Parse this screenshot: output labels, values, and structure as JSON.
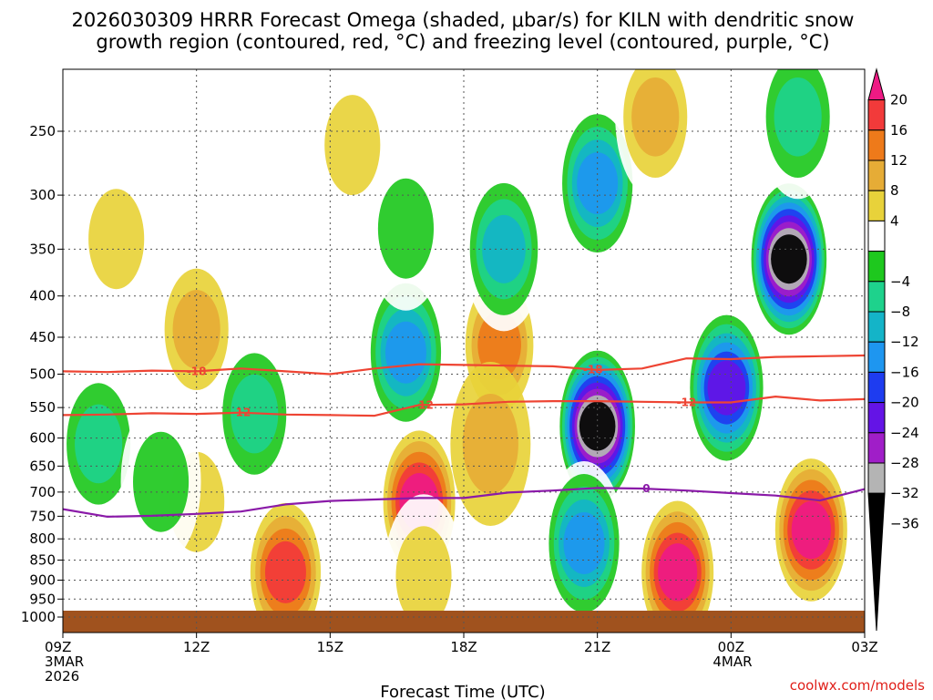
{
  "title": {
    "line1": "2026030309 HRRR Forecast Omega (shaded, μbar/s) for KILN with dendritic snow",
    "line2": "growth region (contoured, red, °C) and freezing level (contoured, purple, °C)"
  },
  "credit": "coolwx.com/models",
  "colors": {
    "ground": "#a0521e",
    "dgz_line": "#ee4433",
    "freezing_line": "#8a1aa8"
  },
  "chart_data": {
    "type": "heatmap",
    "title": "2026030309 HRRR Forecast Omega (shaded, μbar/s) for KILN with dendritic snow growth region (contoured, red, °C) and freezing level (contoured, purple, °C)",
    "xlabel": "Forecast Time (UTC)",
    "ylabel": "Pressure (hPa)",
    "x_hours_range": [
      0,
      18
    ],
    "y_pressure_range": [
      200,
      1000
    ],
    "y_ticks": [
      250,
      300,
      350,
      400,
      450,
      500,
      550,
      600,
      650,
      700,
      750,
      800,
      850,
      900,
      950,
      1000
    ],
    "x_ticks": [
      {
        "hour": 0,
        "label": "09Z",
        "sub1": "3MAR",
        "sub2": "2026"
      },
      {
        "hour": 3,
        "label": "12Z",
        "sub1": "",
        "sub2": ""
      },
      {
        "hour": 6,
        "label": "15Z",
        "sub1": "",
        "sub2": ""
      },
      {
        "hour": 9,
        "label": "18Z",
        "sub1": "",
        "sub2": ""
      },
      {
        "hour": 12,
        "label": "21Z",
        "sub1": "",
        "sub2": ""
      },
      {
        "hour": 15,
        "label": "00Z",
        "sub1": "4MAR",
        "sub2": ""
      },
      {
        "hour": 18,
        "label": "03Z",
        "sub1": "",
        "sub2": ""
      }
    ],
    "colorbar": {
      "labels": [
        "20",
        "16",
        "12",
        "8",
        "4",
        "−4",
        "−8",
        "−12",
        "−16",
        "−20",
        "−24",
        "−28",
        "−32",
        "−36"
      ],
      "bins": [
        {
          "lo": 20,
          "hi": 24,
          "color": "#ee1a84"
        },
        {
          "lo": 16,
          "hi": 20,
          "color": "#f23a3a"
        },
        {
          "lo": 12,
          "hi": 16,
          "color": "#ee7a1a"
        },
        {
          "lo": 8,
          "hi": 12,
          "color": "#e6ac36"
        },
        {
          "lo": 4,
          "hi": 8,
          "color": "#e8d23a"
        },
        {
          "lo": -4,
          "hi": 4,
          "color": "#ffffff"
        },
        {
          "lo": -8,
          "hi": -4,
          "color": "#1ec81e"
        },
        {
          "lo": -12,
          "hi": -8,
          "color": "#1ed28c"
        },
        {
          "lo": -16,
          "hi": -12,
          "color": "#14b4c8"
        },
        {
          "lo": -20,
          "hi": -16,
          "color": "#1e96f0"
        },
        {
          "lo": -24,
          "hi": -20,
          "color": "#1e3cf0"
        },
        {
          "lo": -28,
          "hi": -24,
          "color": "#6414e6"
        },
        {
          "lo": -32,
          "hi": -28,
          "color": "#a01ec8"
        },
        {
          "lo": -36,
          "hi": -32,
          "color": "#b4b4b4"
        },
        {
          "lo": -40,
          "hi": -36,
          "color": "#000000"
        }
      ]
    },
    "omega_cells": [
      {
        "hour": 1.2,
        "pressure": 340,
        "value": 5
      },
      {
        "hour": 3.0,
        "pressure": 440,
        "value": 10
      },
      {
        "hour": 3.0,
        "pressure": 720,
        "value": 5
      },
      {
        "hour": 0.8,
        "pressure": 610,
        "value": -10
      },
      {
        "hour": 2.2,
        "pressure": 680,
        "value": -6
      },
      {
        "hour": 4.3,
        "pressure": 560,
        "value": -9
      },
      {
        "hour": 5.0,
        "pressure": 880,
        "value": 18
      },
      {
        "hour": 6.5,
        "pressure": 260,
        "value": 5
      },
      {
        "hour": 7.7,
        "pressure": 470,
        "value": -18
      },
      {
        "hour": 7.7,
        "pressure": 330,
        "value": -7
      },
      {
        "hour": 8.0,
        "pressure": 720,
        "value": 21
      },
      {
        "hour": 8.1,
        "pressure": 890,
        "value": 6
      },
      {
        "hour": 9.8,
        "pressure": 460,
        "value": 13
      },
      {
        "hour": 9.6,
        "pressure": 610,
        "value": 8
      },
      {
        "hour": 9.9,
        "pressure": 350,
        "value": -13
      },
      {
        "hour": 12.0,
        "pressure": 290,
        "value": -17
      },
      {
        "hour": 12.0,
        "pressure": 580,
        "value": -38
      },
      {
        "hour": 11.7,
        "pressure": 810,
        "value": -17
      },
      {
        "hour": 13.3,
        "pressure": 240,
        "value": 9
      },
      {
        "hour": 13.8,
        "pressure": 880,
        "value": 22
      },
      {
        "hour": 14.9,
        "pressure": 520,
        "value": -26
      },
      {
        "hour": 16.3,
        "pressure": 360,
        "value": -38
      },
      {
        "hour": 16.8,
        "pressure": 780,
        "value": 22
      },
      {
        "hour": 16.5,
        "pressure": 240,
        "value": -10
      }
    ],
    "contours": [
      {
        "name": "-18",
        "kind": "dgz",
        "x": [
          0,
          1,
          2,
          3,
          4,
          5,
          6,
          7,
          8,
          9,
          10,
          11,
          12,
          13,
          14,
          15,
          16,
          17,
          18
        ],
        "y": [
          496,
          497,
          495,
          496,
          492,
          496,
          500,
          492,
          486,
          487,
          488,
          489,
          494,
          492,
          478,
          479,
          476,
          475,
          474
        ],
        "label_hours": [
          3.0,
          11.9
        ]
      },
      {
        "name": "-12",
        "kind": "dgz",
        "x": [
          0,
          1,
          2,
          3,
          4,
          5,
          6,
          7,
          8,
          9,
          10,
          11,
          12,
          13,
          14,
          15,
          16,
          17,
          18
        ],
        "y": [
          562,
          561,
          559,
          560,
          558,
          561,
          562,
          563,
          546,
          545,
          541,
          540,
          540,
          541,
          542,
          542,
          533,
          539,
          537
        ],
        "label_hours": [
          4.0,
          8.1,
          14.0
        ]
      },
      {
        "name": "0",
        "kind": "frz",
        "x": [
          0,
          1,
          2,
          3,
          4,
          5,
          6,
          7,
          8,
          9,
          10,
          11,
          12,
          13,
          14,
          15,
          16,
          17,
          18
        ],
        "y": [
          735,
          751,
          749,
          745,
          740,
          725,
          718,
          715,
          712,
          712,
          701,
          697,
          692,
          693,
          697,
          702,
          707,
          717,
          694
        ],
        "label_hours": [
          13.1
        ]
      }
    ]
  }
}
